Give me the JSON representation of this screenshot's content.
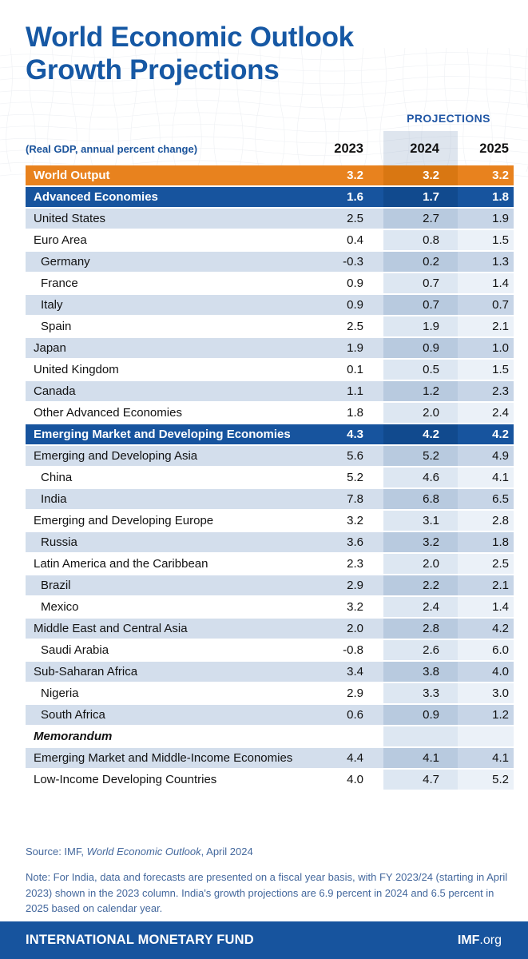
{
  "chart_data": {
    "type": "table",
    "title": "World Economic Outlook Growth Projections",
    "title_lines": [
      "World Economic Outlook",
      "Growth Projections"
    ],
    "subtitle": "(Real GDP, annual percent change)",
    "projections_label": "PROJECTIONS",
    "columns": [
      "2023",
      "2024",
      "2025"
    ],
    "projection_columns": [
      "2024",
      "2025"
    ],
    "rows": [
      {
        "label": "World Output",
        "style": "orange",
        "indent": false,
        "values": [
          "3.2",
          "3.2",
          "3.2"
        ]
      },
      {
        "label": "Advanced Economies",
        "style": "blue",
        "indent": false,
        "values": [
          "1.6",
          "1.7",
          "1.8"
        ]
      },
      {
        "label": "United States",
        "style": "alt",
        "indent": false,
        "values": [
          "2.5",
          "2.7",
          "1.9"
        ]
      },
      {
        "label": "Euro Area",
        "style": "white",
        "indent": false,
        "values": [
          "0.4",
          "0.8",
          "1.5"
        ]
      },
      {
        "label": "Germany",
        "style": "alt",
        "indent": true,
        "values": [
          "-0.3",
          "0.2",
          "1.3"
        ]
      },
      {
        "label": "France",
        "style": "white",
        "indent": true,
        "values": [
          "0.9",
          "0.7",
          "1.4"
        ]
      },
      {
        "label": "Italy",
        "style": "alt",
        "indent": true,
        "values": [
          "0.9",
          "0.7",
          "0.7"
        ]
      },
      {
        "label": "Spain",
        "style": "white",
        "indent": true,
        "values": [
          "2.5",
          "1.9",
          "2.1"
        ]
      },
      {
        "label": "Japan",
        "style": "alt",
        "indent": false,
        "values": [
          "1.9",
          "0.9",
          "1.0"
        ]
      },
      {
        "label": "United Kingdom",
        "style": "white",
        "indent": false,
        "values": [
          "0.1",
          "0.5",
          "1.5"
        ]
      },
      {
        "label": "Canada",
        "style": "alt",
        "indent": false,
        "values": [
          "1.1",
          "1.2",
          "2.3"
        ]
      },
      {
        "label": "Other Advanced Economies",
        "style": "white",
        "indent": false,
        "values": [
          "1.8",
          "2.0",
          "2.4"
        ]
      },
      {
        "label": "Emerging Market and Developing Economies",
        "style": "blue",
        "indent": false,
        "values": [
          "4.3",
          "4.2",
          "4.2"
        ]
      },
      {
        "label": "Emerging and Developing Asia",
        "style": "alt",
        "indent": false,
        "values": [
          "5.6",
          "5.2",
          "4.9"
        ]
      },
      {
        "label": "China",
        "style": "white",
        "indent": true,
        "values": [
          "5.2",
          "4.6",
          "4.1"
        ]
      },
      {
        "label": "India",
        "style": "alt",
        "indent": true,
        "values": [
          "7.8",
          "6.8",
          "6.5"
        ]
      },
      {
        "label": "Emerging and Developing Europe",
        "style": "white",
        "indent": false,
        "values": [
          "3.2",
          "3.1",
          "2.8"
        ]
      },
      {
        "label": "Russia",
        "style": "alt",
        "indent": true,
        "values": [
          "3.6",
          "3.2",
          "1.8"
        ]
      },
      {
        "label": "Latin America and the Caribbean",
        "style": "white",
        "indent": false,
        "values": [
          "2.3",
          "2.0",
          "2.5"
        ]
      },
      {
        "label": "Brazil",
        "style": "alt",
        "indent": true,
        "values": [
          "2.9",
          "2.2",
          "2.1"
        ]
      },
      {
        "label": "Mexico",
        "style": "white",
        "indent": true,
        "values": [
          "3.2",
          "2.4",
          "1.4"
        ]
      },
      {
        "label": "Middle East and Central Asia",
        "style": "alt",
        "indent": false,
        "values": [
          "2.0",
          "2.8",
          "4.2"
        ]
      },
      {
        "label": "Saudi Arabia",
        "style": "white",
        "indent": true,
        "values": [
          "-0.8",
          "2.6",
          "6.0"
        ]
      },
      {
        "label": "Sub-Saharan Africa",
        "style": "alt",
        "indent": false,
        "values": [
          "3.4",
          "3.8",
          "4.0"
        ]
      },
      {
        "label": "Nigeria",
        "style": "white",
        "indent": true,
        "values": [
          "2.9",
          "3.3",
          "3.0"
        ]
      },
      {
        "label": "South Africa",
        "style": "alt",
        "indent": true,
        "values": [
          "0.6",
          "0.9",
          "1.2"
        ]
      },
      {
        "label": "Memorandum",
        "style": "memo",
        "indent": false,
        "values": [
          "",
          "",
          ""
        ]
      },
      {
        "label": "Emerging Market and Middle-Income Economies",
        "style": "alt",
        "indent": false,
        "values": [
          "4.4",
          "4.1",
          "4.1"
        ]
      },
      {
        "label": "Low-Income Developing Countries",
        "style": "white",
        "indent": false,
        "values": [
          "4.0",
          "4.7",
          "5.2"
        ]
      }
    ]
  },
  "footnotes": {
    "source_prefix": "Source: IMF, ",
    "source_italic": "World Economic Outlook",
    "source_suffix": ", April 2024",
    "note": "Note: For India, data and forecasts are presented on a fiscal year basis, with FY 2023/24 (starting in April 2023) shown in the 2023 column. India's growth projections are 6.9 percent in 2024 and 6.5 percent in 2025 based on calendar year."
  },
  "footer": {
    "org_name": "INTERNATIONAL MONETARY FUND",
    "site_bold": "IMF",
    "site_suffix": ".org"
  },
  "colors": {
    "accent_blue": "#1658A4",
    "world_row_orange": "#E8821E",
    "world_row_orange_highlight": "#D97712",
    "group_row_blue": "#17549E",
    "group_row_blue_highlight": "#114A8E",
    "alt_row_blue": "#D3DEEC",
    "column_highlight": "#B8CADF",
    "footnote_text": "#44689D",
    "footer_bg": "#17549E"
  }
}
